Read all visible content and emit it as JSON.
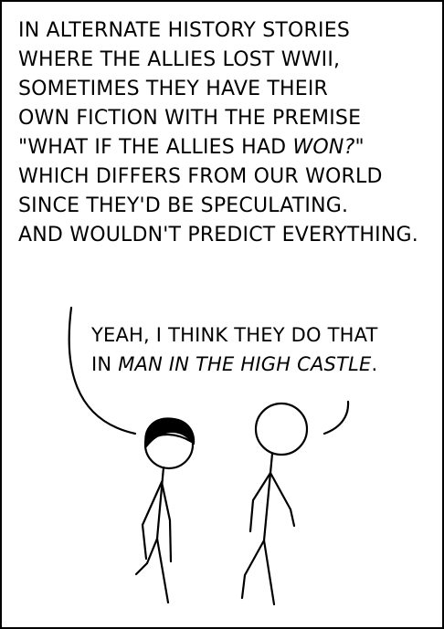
{
  "speech_left": {
    "lines": [
      "IN ALTERNATE HISTORY STORIES",
      "WHERE THE ALLIES LOST WWII,",
      "SOMETIMES THEY HAVE THEIR",
      "OWN FICTION WITH THE PREMISE",
      "WHICH DIFFERS FROM OUR WORLD",
      "SINCE THEY'D BE SPECULATING.",
      "AND WOULDN'T PREDICT EVERYTHING."
    ],
    "line5_pre": "\"WHAT IF THE ALLIES HAD ",
    "line5_em": "WON?",
    "line5_post": "\""
  },
  "speech_right": {
    "line1": "YEAH, I THINK THEY DO THAT",
    "line2_pre": "IN ",
    "line2_em": "MAN IN THE HIGH CASTLE",
    "line2_post": "."
  }
}
